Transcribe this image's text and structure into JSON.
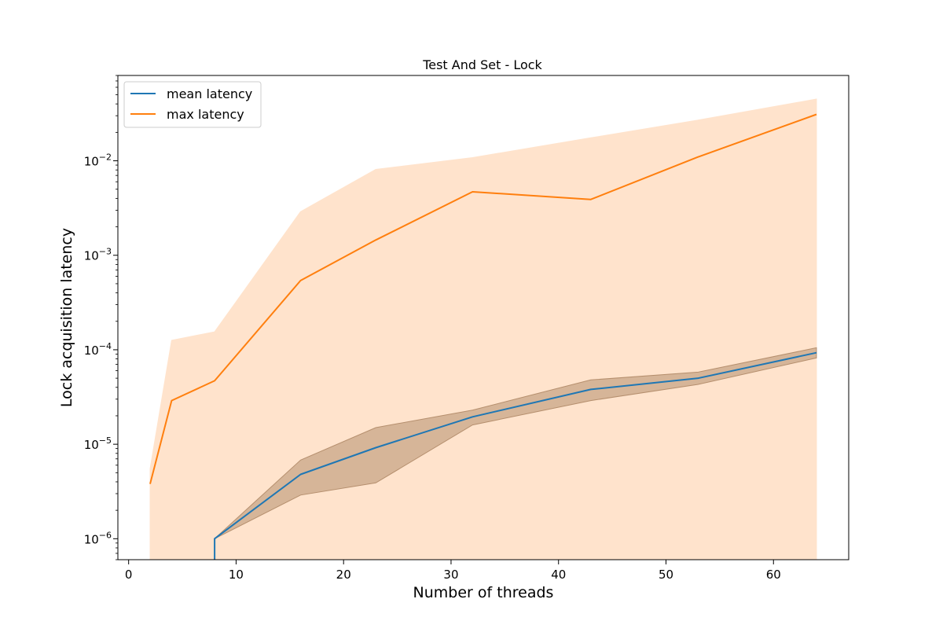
{
  "chart_data": {
    "type": "line",
    "title": "Test And Set - Lock",
    "xlabel": "Number of threads",
    "ylabel": "Lock acquisition latency",
    "xlim": [
      -1,
      67
    ],
    "ylim": [
      6e-07,
      0.08
    ],
    "yscale": "log",
    "grid": false,
    "legend_position": "top-left",
    "x_ticks": [
      0,
      10,
      20,
      30,
      40,
      50,
      60
    ],
    "y_ticks": [
      {
        "value": 1e-06,
        "exp": "-6"
      },
      {
        "value": 1e-05,
        "exp": "-5"
      },
      {
        "value": 0.0001,
        "exp": "-4"
      },
      {
        "value": 0.001,
        "exp": "-3"
      },
      {
        "value": 0.01,
        "exp": "-2"
      }
    ],
    "series": [
      {
        "name": "mean latency",
        "color": "#1f77b4",
        "band_color": "#b58f6e",
        "x": [
          8,
          8,
          16,
          23,
          32,
          43,
          53,
          64
        ],
        "values": [
          5e-07,
          1e-06,
          4.8e-06,
          9.2e-06,
          1.95e-05,
          3.8e-05,
          5e-05,
          9.3e-05
        ],
        "band_upper": [
          1e-06,
          1e-06,
          6.8e-06,
          1.5e-05,
          2.3e-05,
          4.8e-05,
          5.8e-05,
          0.000105
        ],
        "band_lower": [
          5e-07,
          1e-06,
          2.9e-06,
          3.9e-06,
          1.6e-05,
          2.9e-05,
          4.3e-05,
          8.2e-05
        ]
      },
      {
        "name": "max latency",
        "color": "#ff7f0e",
        "band_color": "#ffe3cc",
        "x": [
          2,
          4,
          8,
          16,
          23,
          32,
          43,
          53,
          64
        ],
        "values": [
          3.8e-06,
          2.9e-05,
          4.7e-05,
          0.00054,
          0.00145,
          0.0047,
          0.0039,
          0.011,
          0.031
        ],
        "band_upper": [
          5.5e-06,
          0.000126,
          0.000155,
          0.0029,
          0.0081,
          0.0108,
          0.0175,
          0.027,
          0.045
        ],
        "band_lower": [
          5e-07,
          5e-07,
          5e-07,
          5e-07,
          5e-07,
          5e-07,
          5e-07,
          5e-07,
          5e-07
        ]
      }
    ]
  }
}
